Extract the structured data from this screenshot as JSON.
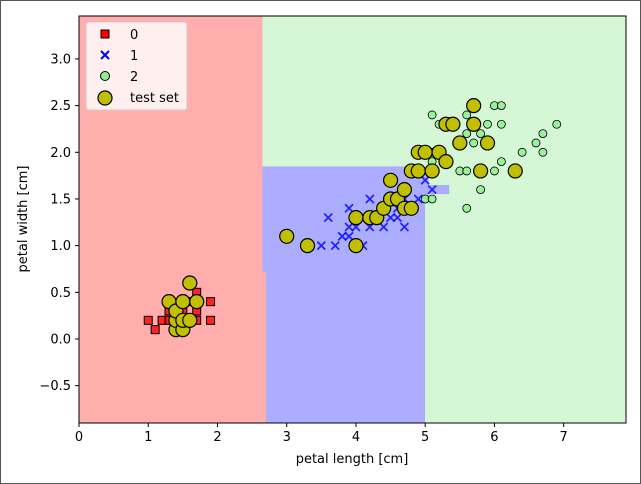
{
  "chart_data": {
    "type": "scatter",
    "title": "",
    "xlabel": "petal length [cm]",
    "ylabel": "petal width [cm]",
    "xlim": [
      0,
      7.9
    ],
    "ylim": [
      -0.9,
      3.46
    ],
    "xticks": [
      0,
      1,
      2,
      3,
      4,
      5,
      6,
      7
    ],
    "yticks": [
      -0.5,
      0.0,
      0.5,
      1.0,
      1.5,
      2.0,
      2.5,
      3.0
    ],
    "xtick_labels": [
      "0",
      "1",
      "2",
      "3",
      "4",
      "5",
      "6",
      "7"
    ],
    "ytick_labels": [
      "−0.5",
      "0.0",
      "0.5",
      "1.0",
      "1.5",
      "2.0",
      "2.5",
      "3.0"
    ],
    "grid": false,
    "legend_position": "top-left",
    "regions": [
      {
        "class": "0",
        "color": "#ff9999",
        "polygon": [
          [
            0,
            -0.9
          ],
          [
            2.7,
            -0.9
          ],
          [
            2.7,
            0.72
          ],
          [
            2.65,
            0.72
          ],
          [
            2.65,
            3.46
          ],
          [
            0,
            3.46
          ]
        ]
      },
      {
        "class": "1",
        "color": "#9999ff",
        "polygon": [
          [
            2.7,
            -0.9
          ],
          [
            5.0,
            -0.9
          ],
          [
            5.0,
            1.5
          ],
          [
            5.05,
            1.5
          ],
          [
            5.05,
            1.55
          ],
          [
            5.35,
            1.55
          ],
          [
            5.35,
            1.65
          ],
          [
            5.05,
            1.65
          ],
          [
            5.05,
            1.8
          ],
          [
            4.95,
            1.8
          ],
          [
            4.95,
            1.85
          ],
          [
            2.65,
            1.85
          ],
          [
            2.65,
            0.72
          ],
          [
            2.7,
            0.72
          ]
        ]
      },
      {
        "class": "2",
        "color": "#ccf5cc",
        "polygon": [
          [
            5.0,
            -0.9
          ],
          [
            7.9,
            -0.9
          ],
          [
            7.9,
            3.46
          ],
          [
            2.65,
            3.46
          ],
          [
            2.65,
            1.85
          ],
          [
            4.95,
            1.85
          ],
          [
            4.95,
            1.8
          ],
          [
            5.05,
            1.8
          ],
          [
            5.05,
            1.65
          ],
          [
            5.35,
            1.65
          ],
          [
            5.35,
            1.55
          ],
          [
            5.05,
            1.55
          ],
          [
            5.05,
            1.5
          ],
          [
            5.0,
            1.5
          ]
        ]
      }
    ],
    "series": [
      {
        "name": "0",
        "marker": "square",
        "color": "#ff0000",
        "points": [
          [
            1.0,
            0.2
          ],
          [
            1.1,
            0.1
          ],
          [
            1.2,
            0.2
          ],
          [
            1.3,
            0.2
          ],
          [
            1.3,
            0.3
          ],
          [
            1.4,
            0.2
          ],
          [
            1.4,
            0.3
          ],
          [
            1.5,
            0.1
          ],
          [
            1.5,
            0.2
          ],
          [
            1.5,
            0.3
          ],
          [
            1.5,
            0.4
          ],
          [
            1.6,
            0.2
          ],
          [
            1.6,
            0.4
          ],
          [
            1.7,
            0.2
          ],
          [
            1.7,
            0.3
          ],
          [
            1.7,
            0.5
          ],
          [
            1.9,
            0.2
          ],
          [
            1.9,
            0.4
          ]
        ]
      },
      {
        "name": "1",
        "marker": "x",
        "color": "#0000ff",
        "points": [
          [
            3.5,
            1.0
          ],
          [
            3.6,
            1.3
          ],
          [
            3.7,
            1.0
          ],
          [
            3.8,
            1.1
          ],
          [
            3.9,
            1.1
          ],
          [
            3.9,
            1.2
          ],
          [
            3.9,
            1.4
          ],
          [
            4.0,
            1.0
          ],
          [
            4.0,
            1.2
          ],
          [
            4.1,
            1.0
          ],
          [
            4.1,
            1.3
          ],
          [
            4.2,
            1.2
          ],
          [
            4.2,
            1.5
          ],
          [
            4.3,
            1.3
          ],
          [
            4.4,
            1.2
          ],
          [
            4.4,
            1.4
          ],
          [
            4.5,
            1.3
          ],
          [
            4.5,
            1.5
          ],
          [
            4.6,
            1.3
          ],
          [
            4.6,
            1.4
          ],
          [
            4.7,
            1.2
          ],
          [
            4.7,
            1.4
          ],
          [
            4.7,
            1.5
          ],
          [
            4.8,
            1.4
          ],
          [
            4.9,
            1.5
          ],
          [
            5.0,
            1.7
          ],
          [
            5.1,
            1.6
          ]
        ]
      },
      {
        "name": "2",
        "marker": "circle",
        "color": "#90ee90",
        "points": [
          [
            4.8,
            1.8
          ],
          [
            5.0,
            1.5
          ],
          [
            5.1,
            1.5
          ],
          [
            5.1,
            1.9
          ],
          [
            5.1,
            2.0
          ],
          [
            5.1,
            2.4
          ],
          [
            5.2,
            2.3
          ],
          [
            5.3,
            1.9
          ],
          [
            5.3,
            2.3
          ],
          [
            5.5,
            1.8
          ],
          [
            5.5,
            2.1
          ],
          [
            5.6,
            1.4
          ],
          [
            5.6,
            1.8
          ],
          [
            5.6,
            2.2
          ],
          [
            5.6,
            2.4
          ],
          [
            5.7,
            2.1
          ],
          [
            5.7,
            2.3
          ],
          [
            5.8,
            1.6
          ],
          [
            5.8,
            2.2
          ],
          [
            5.9,
            2.3
          ],
          [
            6.0,
            1.8
          ],
          [
            6.0,
            2.5
          ],
          [
            6.1,
            1.9
          ],
          [
            6.1,
            2.3
          ],
          [
            6.1,
            2.5
          ],
          [
            6.4,
            2.0
          ],
          [
            6.6,
            2.1
          ],
          [
            6.7,
            2.0
          ],
          [
            6.7,
            2.2
          ],
          [
            6.9,
            2.3
          ]
        ]
      },
      {
        "name": "test set",
        "marker": "circle-large",
        "color": "#c0c000",
        "points": [
          [
            1.3,
            0.4
          ],
          [
            1.4,
            0.1
          ],
          [
            1.4,
            0.2
          ],
          [
            1.4,
            0.3
          ],
          [
            1.5,
            0.1
          ],
          [
            1.5,
            0.2
          ],
          [
            1.5,
            0.4
          ],
          [
            1.6,
            0.2
          ],
          [
            1.6,
            0.6
          ],
          [
            1.7,
            0.4
          ],
          [
            3.0,
            1.1
          ],
          [
            3.3,
            1.0
          ],
          [
            4.0,
            1.0
          ],
          [
            4.0,
            1.3
          ],
          [
            4.2,
            1.3
          ],
          [
            4.3,
            1.3
          ],
          [
            4.4,
            1.4
          ],
          [
            4.5,
            1.5
          ],
          [
            4.5,
            1.7
          ],
          [
            4.6,
            1.5
          ],
          [
            4.7,
            1.4
          ],
          [
            4.7,
            1.6
          ],
          [
            4.8,
            1.4
          ],
          [
            4.8,
            1.8
          ],
          [
            4.9,
            1.8
          ],
          [
            4.9,
            2.0
          ],
          [
            5.0,
            2.0
          ],
          [
            5.1,
            1.8
          ],
          [
            5.2,
            2.0
          ],
          [
            5.3,
            2.3
          ],
          [
            5.3,
            1.9
          ],
          [
            5.4,
            2.3
          ],
          [
            5.5,
            2.1
          ],
          [
            5.7,
            2.3
          ],
          [
            5.7,
            2.5
          ],
          [
            5.8,
            1.8
          ],
          [
            5.9,
            2.1
          ],
          [
            6.3,
            1.8
          ]
        ]
      }
    ]
  }
}
